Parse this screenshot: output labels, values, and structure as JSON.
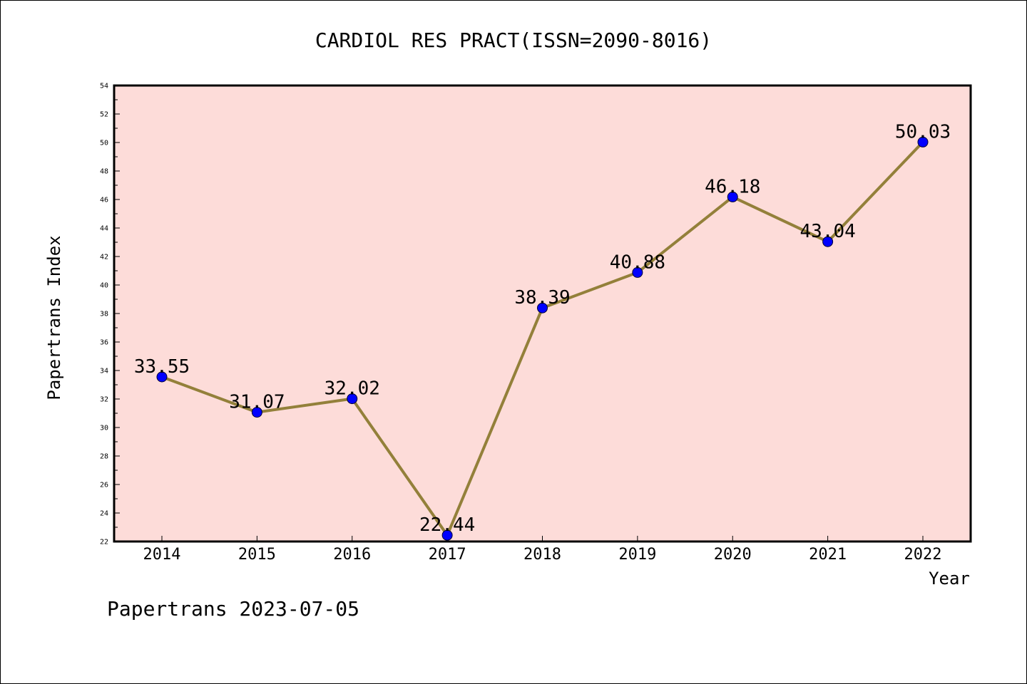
{
  "chart_data": {
    "type": "line",
    "title": "CARDIOL RES PRACT(ISSN=2090-8016)",
    "xlabel": "Year",
    "ylabel": "Papertrans Index",
    "categories": [
      "2014",
      "2015",
      "2016",
      "2017",
      "2018",
      "2019",
      "2020",
      "2021",
      "2022"
    ],
    "values": [
      33.55,
      31.07,
      32.02,
      22.44,
      38.39,
      40.88,
      46.18,
      43.04,
      50.03
    ],
    "data_labels": [
      "33.55",
      "31.07",
      "32.02",
      "22.44",
      "38.39",
      "40.88",
      "46.18",
      "43.04",
      "50.03"
    ],
    "ylim": [
      22,
      54
    ],
    "yticks": [
      "22",
      "24",
      "26",
      "28",
      "30",
      "32",
      "34",
      "36",
      "38",
      "40",
      "42",
      "44",
      "46",
      "48",
      "50",
      "52",
      "54"
    ],
    "grid": false,
    "colors": {
      "plot_background": "#fddcd9",
      "line": "#93803a",
      "marker": "#0000ff"
    }
  },
  "footer": "Papertrans 2023-07-05"
}
